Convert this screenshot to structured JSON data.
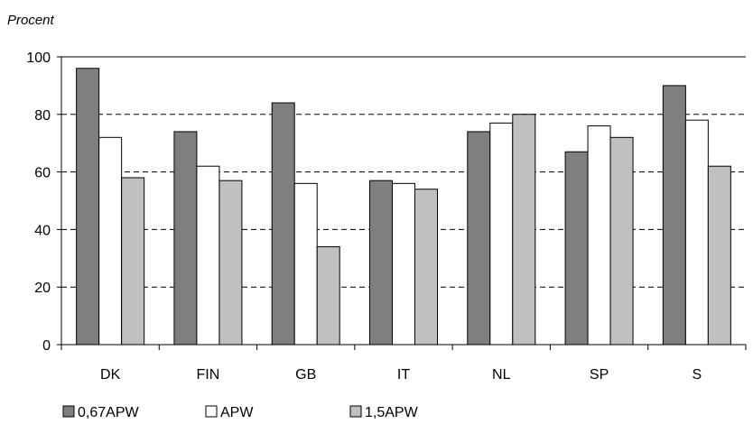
{
  "chart_data": {
    "type": "bar",
    "title": "",
    "ylabel": "Procent",
    "xlabel": "",
    "categories": [
      "DK",
      "FIN",
      "GB",
      "IT",
      "NL",
      "SP",
      "S"
    ],
    "ylim": [
      0,
      100
    ],
    "yticks": [
      0,
      20,
      40,
      60,
      80,
      100
    ],
    "grid": "dashed horizontal",
    "legend": "bottom-left",
    "series": [
      {
        "name": "0,67APW",
        "color": "#7f7f7f",
        "values": [
          96,
          74,
          84,
          57,
          74,
          67,
          90
        ]
      },
      {
        "name": "APW",
        "color": "#ffffff",
        "values": [
          72,
          62,
          56,
          56,
          77,
          76,
          78
        ]
      },
      {
        "name": "1,5APW",
        "color": "#c0c0c0",
        "values": [
          58,
          57,
          34,
          54,
          80,
          72,
          62
        ]
      }
    ]
  }
}
